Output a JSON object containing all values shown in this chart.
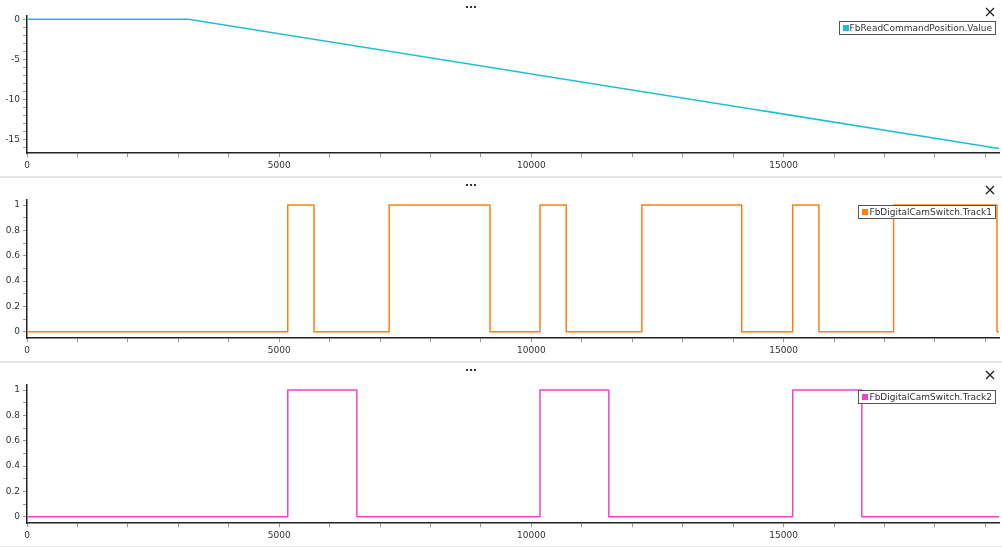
{
  "chart_data": [
    {
      "type": "line",
      "x": [
        0,
        3200,
        19270
      ],
      "series": [
        {
          "name": "FbReadCommandPosition.Value",
          "color": "#1ebfd6",
          "values": [
            0,
            0,
            -16.1
          ]
        }
      ],
      "xlim": [
        0,
        19270
      ],
      "ylim": [
        -16.7,
        0.4
      ],
      "xticks": [
        0,
        {
          "value": 1000,
          "label": null
        },
        {
          "value": 2000,
          "label": null
        },
        {
          "value": 3000,
          "label": null
        },
        {
          "value": 4000,
          "label": null
        },
        5000,
        {
          "value": 6000,
          "label": null
        },
        {
          "value": 7000,
          "label": null
        },
        {
          "value": 8000,
          "label": null
        },
        {
          "value": 9000,
          "label": null
        },
        10000,
        {
          "value": 11000,
          "label": null
        },
        {
          "value": 12000,
          "label": null
        },
        {
          "value": 13000,
          "label": null
        },
        {
          "value": 14000,
          "label": null
        },
        15000,
        {
          "value": 16000,
          "label": null
        },
        {
          "value": 17000,
          "label": null
        },
        {
          "value": 18000,
          "label": null
        },
        {
          "value": 19000,
          "label": null
        }
      ],
      "yticks": [
        {
          "value": -16,
          "label": null
        },
        -15,
        {
          "value": -14,
          "label": null
        },
        {
          "value": -13,
          "label": null
        },
        {
          "value": -12,
          "label": null
        },
        {
          "value": -11,
          "label": null
        },
        -10,
        {
          "value": -9,
          "label": null
        },
        {
          "value": -8,
          "label": null
        },
        {
          "value": -7,
          "label": null
        },
        {
          "value": -6,
          "label": null
        },
        -5,
        {
          "value": -4,
          "label": null
        },
        {
          "value": -3,
          "label": null
        },
        {
          "value": -2,
          "label": null
        },
        {
          "value": -1,
          "label": null
        },
        0
      ],
      "grid": false,
      "legend": "top right",
      "marker": "none"
    },
    {
      "type": "step",
      "x": [
        0,
        5170,
        5690,
        7180,
        9180,
        10170,
        10690,
        12190,
        14170,
        15180,
        15700,
        17180,
        19230,
        19270
      ],
      "series": [
        {
          "name": "FbDigitalCamSwitch.Track1",
          "color": "#ff7f0e",
          "values": [
            0,
            1,
            0,
            1,
            0,
            1,
            0,
            1,
            0,
            1,
            0,
            1,
            0,
            0
          ]
        }
      ],
      "xlim": [
        0,
        19270
      ],
      "ylim": [
        -0.05,
        1.04
      ],
      "xticks": [
        0,
        {
          "value": 1000,
          "label": null
        },
        {
          "value": 2000,
          "label": null
        },
        {
          "value": 3000,
          "label": null
        },
        {
          "value": 4000,
          "label": null
        },
        5000,
        {
          "value": 6000,
          "label": null
        },
        {
          "value": 7000,
          "label": null
        },
        {
          "value": 8000,
          "label": null
        },
        {
          "value": 9000,
          "label": null
        },
        10000,
        {
          "value": 11000,
          "label": null
        },
        {
          "value": 12000,
          "label": null
        },
        {
          "value": 13000,
          "label": null
        },
        {
          "value": 14000,
          "label": null
        },
        15000,
        {
          "value": 16000,
          "label": null
        },
        {
          "value": 17000,
          "label": null
        },
        {
          "value": 18000,
          "label": null
        },
        {
          "value": 19000,
          "label": null
        }
      ],
      "yticks": [
        0,
        {
          "value": 0.1,
          "label": null
        },
        0.2,
        {
          "value": 0.3,
          "label": null
        },
        0.4,
        {
          "value": 0.5,
          "label": null
        },
        0.6,
        {
          "value": 0.7,
          "label": null
        },
        0.8,
        {
          "value": 0.9,
          "label": null
        },
        1
      ],
      "grid": false,
      "legend": "top right",
      "marker": "none"
    },
    {
      "type": "step",
      "x": [
        0,
        5170,
        6540,
        10170,
        11535,
        15180,
        16550,
        19270
      ],
      "series": [
        {
          "name": "FbDigitalCamSwitch.Track2",
          "color": "#ee44cc",
          "values": [
            0,
            1,
            0,
            1,
            0,
            1,
            0,
            0
          ]
        }
      ],
      "xlim": [
        0,
        19270
      ],
      "ylim": [
        -0.05,
        1.04
      ],
      "xticks": [
        0,
        {
          "value": 1000,
          "label": null
        },
        {
          "value": 2000,
          "label": null
        },
        {
          "value": 3000,
          "label": null
        },
        {
          "value": 4000,
          "label": null
        },
        5000,
        {
          "value": 6000,
          "label": null
        },
        {
          "value": 7000,
          "label": null
        },
        {
          "value": 8000,
          "label": null
        },
        {
          "value": 9000,
          "label": null
        },
        10000,
        {
          "value": 11000,
          "label": null
        },
        {
          "value": 12000,
          "label": null
        },
        {
          "value": 13000,
          "label": null
        },
        {
          "value": 14000,
          "label": null
        },
        15000,
        {
          "value": 16000,
          "label": null
        },
        {
          "value": 17000,
          "label": null
        },
        {
          "value": 18000,
          "label": null
        },
        {
          "value": 19000,
          "label": null
        }
      ],
      "yticks": [
        0,
        {
          "value": 0.1,
          "label": null
        },
        0.2,
        {
          "value": 0.3,
          "label": null
        },
        0.4,
        {
          "value": 0.5,
          "label": null
        },
        0.6,
        {
          "value": 0.7,
          "label": null
        },
        0.8,
        {
          "value": 0.9,
          "label": null
        },
        1
      ],
      "grid": false,
      "legend": "top right",
      "marker": "none"
    }
  ]
}
